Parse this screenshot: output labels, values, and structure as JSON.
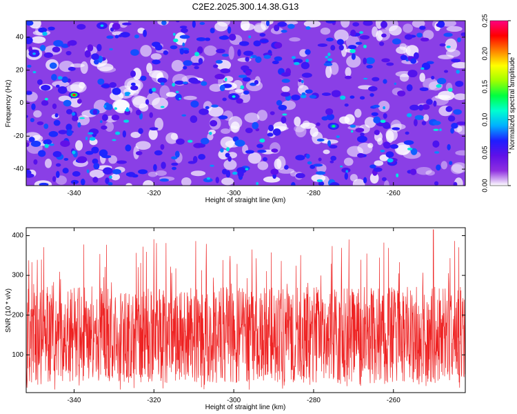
{
  "title": "C2E2.2025.300.14.38.G13",
  "colors": {
    "snr_line": "#ee2222",
    "axis": "#000000",
    "background": "#ffffff"
  },
  "chart_data": [
    {
      "type": "heatmap",
      "xlabel": "Height of straight line (km)",
      "ylabel": "Frequency (Hz)",
      "xlim": [
        -352,
        -242
      ],
      "ylim": [
        -50,
        50
      ],
      "xticks": [
        -340,
        -320,
        -300,
        -280,
        -260
      ],
      "yticks": [
        -40,
        -20,
        0,
        20,
        40
      ],
      "colorbar": {
        "label": "Normalized spectral amplitude",
        "range": [
          0.0,
          0.25
        ],
        "ticks": [
          "0.00",
          "0.05",
          "0.10",
          "0.15",
          "0.20",
          "0.25"
        ],
        "colormap": [
          "#ffffff",
          "#8e2fe0",
          "#5f10e8",
          "#1e1eff",
          "#00b0ff",
          "#00ffd0",
          "#00ff40",
          "#a0ff00",
          "#ffff00",
          "#ff8000",
          "#ff0000",
          "#ff0080"
        ]
      },
      "hotspots": [
        {
          "x": -340,
          "y": 5,
          "v": 0.22
        },
        {
          "x": -275,
          "y": -14,
          "v": 0.13
        },
        {
          "x": -333,
          "y": 47,
          "v": 0.1
        },
        {
          "x": -300,
          "y": 4,
          "v": 0.11
        },
        {
          "x": -350,
          "y": 30,
          "v": 0.09
        }
      ],
      "note": "background is a dense field of small blobs with amplitude ~0.02-0.08"
    },
    {
      "type": "line",
      "xlabel": "Height of straight line (km)",
      "ylabel": "SNR (10 * v/v)",
      "xlim": [
        -352,
        -242
      ],
      "ylim": [
        5,
        420
      ],
      "xticks": [
        -340,
        -320,
        -300,
        -280,
        -260
      ],
      "yticks": [
        100,
        200,
        300,
        400
      ],
      "series": [
        {
          "name": "SNR",
          "summary": {
            "mean": 150,
            "typical_low": 40,
            "typical_high": 260,
            "max": 415,
            "max_at_x": -250
          }
        }
      ]
    }
  ]
}
